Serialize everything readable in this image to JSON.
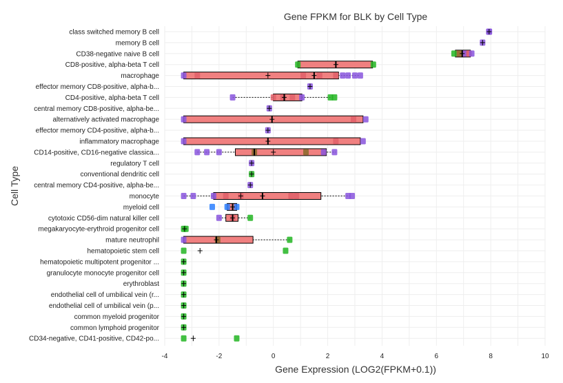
{
  "chart_data": {
    "type": "box",
    "title": "Gene FPKM for BLK by Cell Type",
    "xlabel": "Gene Expression (LOG2(FPKM+0.1))",
    "ylabel": "Cell Type",
    "xlim": [
      -4,
      10
    ],
    "xticks": [
      -4,
      -2,
      0,
      2,
      4,
      6,
      8,
      10
    ],
    "grid": true,
    "legend": "none",
    "colors": {
      "box": "#f08080",
      "purple": "#8855dd",
      "green": "#22b522",
      "blue": "#2b7fff",
      "brown": "#8a6a2a",
      "grid": "#eeeeee"
    },
    "categories": [
      {
        "label": "class switched memory B cell",
        "points": [
          {
            "x": 7.95,
            "c": "purple"
          },
          {
            "x": 7.93,
            "c": "purple"
          }
        ],
        "plus": [
          7.94
        ]
      },
      {
        "label": "memory B cell",
        "points": [
          {
            "x": 7.7,
            "c": "purple"
          }
        ],
        "plus": [
          7.7
        ]
      },
      {
        "label": "CD38-negative naive B cell",
        "box": [
          6.7,
          6.95,
          7.25
        ],
        "points": [
          {
            "x": 6.65,
            "c": "green"
          },
          {
            "x": 6.85,
            "c": "brown"
          },
          {
            "x": 7.05,
            "c": "purple"
          },
          {
            "x": 7.2,
            "c": "box"
          },
          {
            "x": 7.3,
            "c": "purple"
          }
        ],
        "plus": [
          6.95
        ]
      },
      {
        "label": "CD8-positive, alpha-beta T cell",
        "box": [
          0.9,
          2.3,
          3.65
        ],
        "points": [
          {
            "x": 0.9,
            "c": "green"
          },
          {
            "x": 3.68,
            "c": "green"
          }
        ],
        "plus": [
          2.3
        ]
      },
      {
        "label": "macrophage",
        "box": [
          -3.3,
          1.5,
          2.4
        ],
        "whisker": [
          -3.3,
          3.2
        ],
        "points": [
          {
            "x": -3.3,
            "c": "purple"
          },
          {
            "x": -2.8,
            "c": "box"
          },
          {
            "x": 1.1,
            "c": "box"
          },
          {
            "x": 1.7,
            "c": "box"
          },
          {
            "x": 2.3,
            "c": "box"
          },
          {
            "x": 2.55,
            "c": "purple"
          },
          {
            "x": 2.75,
            "c": "purple"
          },
          {
            "x": 3.0,
            "c": "purple"
          },
          {
            "x": 3.2,
            "c": "purple"
          }
        ],
        "plus": [
          -0.2,
          1.5
        ]
      },
      {
        "label": "effector memory CD8-positive, alpha-b...",
        "points": [
          {
            "x": 1.35,
            "c": "purple"
          }
        ],
        "plus": [
          1.35
        ]
      },
      {
        "label": "CD4-positive, alpha-beta T cell",
        "box": [
          0.0,
          0.4,
          1.05
        ],
        "whisker": [
          -1.5,
          2.2
        ],
        "points": [
          {
            "x": -1.5,
            "c": "purple"
          },
          {
            "x": 0.0,
            "c": "box"
          },
          {
            "x": 0.35,
            "c": "box"
          },
          {
            "x": 0.7,
            "c": "box"
          },
          {
            "x": 1.05,
            "c": "purple"
          },
          {
            "x": 2.1,
            "c": "green"
          },
          {
            "x": 2.25,
            "c": "green"
          }
        ],
        "plus": [
          0.4
        ]
      },
      {
        "label": "central memory CD8-positive, alpha-be...",
        "points": [
          {
            "x": -0.15,
            "c": "purple"
          }
        ],
        "plus": [
          -0.15
        ]
      },
      {
        "label": "alternatively activated macrophage",
        "box": [
          -3.3,
          -0.05,
          3.3
        ],
        "points": [
          {
            "x": -3.3,
            "c": "purple"
          },
          {
            "x": 2.95,
            "c": "box"
          },
          {
            "x": 3.4,
            "c": "purple"
          }
        ],
        "plus": [
          -0.05
        ]
      },
      {
        "label": "effector memory CD4-positive, alpha-b...",
        "points": [
          {
            "x": -0.2,
            "c": "purple"
          }
        ],
        "plus": [
          -0.2
        ]
      },
      {
        "label": "inflammatory macrophage",
        "box": [
          -3.3,
          -0.2,
          3.2
        ],
        "points": [
          {
            "x": -3.3,
            "c": "purple"
          },
          {
            "x": 2.3,
            "c": "box"
          },
          {
            "x": 3.3,
            "c": "purple"
          }
        ],
        "plus": [
          -0.2
        ]
      },
      {
        "label": "CD14-positive, CD16-negative classica...",
        "box": [
          -1.4,
          -0.7,
          1.95
        ],
        "whisker": [
          -2.8,
          2.3
        ],
        "points": [
          {
            "x": -2.8,
            "c": "purple"
          },
          {
            "x": -2.45,
            "c": "purple"
          },
          {
            "x": -2.0,
            "c": "purple"
          },
          {
            "x": -0.7,
            "c": "brown"
          },
          {
            "x": 1.2,
            "c": "brown"
          },
          {
            "x": 1.85,
            "c": "purple"
          },
          {
            "x": 2.25,
            "c": "purple"
          }
        ],
        "plus": [
          0.0
        ]
      },
      {
        "label": "regulatory T cell",
        "points": [
          {
            "x": -0.8,
            "c": "purple"
          }
        ],
        "plus": [
          -0.8
        ]
      },
      {
        "label": "conventional dendritic cell",
        "points": [
          {
            "x": -0.8,
            "c": "green"
          }
        ],
        "plus": [
          -0.8
        ]
      },
      {
        "label": "central memory CD4-positive, alpha-be...",
        "points": [
          {
            "x": -0.85,
            "c": "purple"
          }
        ],
        "plus": [
          -0.85
        ]
      },
      {
        "label": "monocyte",
        "box": [
          -2.2,
          -0.4,
          1.75
        ],
        "whisker": [
          -3.3,
          2.85
        ],
        "points": [
          {
            "x": -3.3,
            "c": "purple"
          },
          {
            "x": -2.95,
            "c": "purple"
          },
          {
            "x": -2.2,
            "c": "purple"
          },
          {
            "x": -1.75,
            "c": "box"
          },
          {
            "x": -1.2,
            "c": "box"
          },
          {
            "x": 0.65,
            "c": "box"
          },
          {
            "x": 0.85,
            "c": "box"
          },
          {
            "x": 2.75,
            "c": "purple"
          },
          {
            "x": 2.9,
            "c": "purple"
          }
        ],
        "plus": [
          -1.2,
          -0.4
        ]
      },
      {
        "label": "myeloid cell",
        "box": [
          -1.7,
          -1.5,
          -1.35
        ],
        "points": [
          {
            "x": -2.25,
            "c": "blue"
          },
          {
            "x": -1.7,
            "c": "blue"
          },
          {
            "x": -1.35,
            "c": "blue"
          }
        ],
        "plus": [
          -1.5
        ]
      },
      {
        "label": "cytotoxic CD56-dim natural killer cell",
        "box": [
          -1.75,
          -1.5,
          -1.3
        ],
        "whisker": [
          -2.0,
          -0.85
        ],
        "points": [
          {
            "x": -2.0,
            "c": "purple"
          },
          {
            "x": -1.5,
            "c": "box"
          },
          {
            "x": -0.85,
            "c": "green"
          }
        ],
        "plus": [
          -1.5
        ]
      },
      {
        "label": "megakaryocyte-erythroid progenitor cell",
        "points": [
          {
            "x": -3.3,
            "c": "green"
          },
          {
            "x": -3.22,
            "c": "green"
          }
        ],
        "plus": [
          -3.27
        ]
      },
      {
        "label": "mature neutrophil",
        "box": [
          -3.3,
          -2.1,
          -0.75
        ],
        "whisker": [
          -3.3,
          0.65
        ],
        "points": [
          {
            "x": -3.3,
            "c": "purple"
          },
          {
            "x": -2.05,
            "c": "brown"
          },
          {
            "x": 0.6,
            "c": "green"
          }
        ],
        "plus": [
          -2.1
        ]
      },
      {
        "label": "hematopoietic stem cell",
        "points": [
          {
            "x": -3.3,
            "c": "green"
          },
          {
            "x": 0.45,
            "c": "green"
          }
        ],
        "plus": [
          -2.7
        ]
      },
      {
        "label": "hematopoietic multipotent progenitor ...",
        "points": [
          {
            "x": -3.3,
            "c": "green"
          }
        ],
        "plus": [
          -3.3
        ]
      },
      {
        "label": "granulocyte monocyte progenitor cell",
        "points": [
          {
            "x": -3.3,
            "c": "green"
          }
        ],
        "plus": [
          -3.3
        ]
      },
      {
        "label": "erythroblast",
        "points": [
          {
            "x": -3.3,
            "c": "green"
          }
        ],
        "plus": [
          -3.3
        ]
      },
      {
        "label": "endothelial cell of umbilical vein (r...",
        "points": [
          {
            "x": -3.3,
            "c": "green"
          }
        ],
        "plus": [
          -3.3
        ]
      },
      {
        "label": "endothelial cell of umbilical vein (p...",
        "points": [
          {
            "x": -3.3,
            "c": "green"
          }
        ],
        "plus": [
          -3.3
        ]
      },
      {
        "label": "common myeloid progenitor",
        "points": [
          {
            "x": -3.3,
            "c": "green"
          }
        ],
        "plus": [
          -3.3
        ]
      },
      {
        "label": "common lymphoid progenitor",
        "points": [
          {
            "x": -3.3,
            "c": "green"
          }
        ],
        "plus": [
          -3.3
        ]
      },
      {
        "label": "CD34-negative, CD41-positive, CD42-po...",
        "points": [
          {
            "x": -3.3,
            "c": "green"
          },
          {
            "x": -1.35,
            "c": "green"
          }
        ],
        "plus": [
          -2.95
        ]
      }
    ]
  }
}
